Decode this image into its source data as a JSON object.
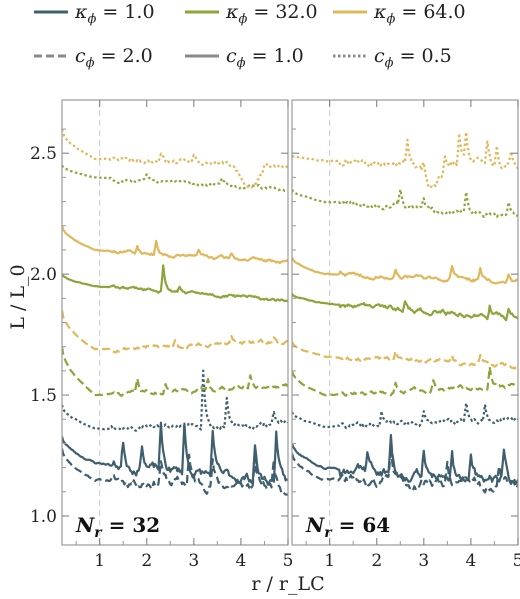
{
  "chart_data": {
    "type": "line",
    "xlabel": "r / r_LC",
    "ylabel": "L / L_0",
    "xlim": [
      0.2,
      5.0
    ],
    "ylim": [
      0.88,
      2.72
    ],
    "x_ticks": [
      1,
      2,
      3,
      4,
      5
    ],
    "y_ticks": [
      1.0,
      1.5,
      2.0,
      2.5
    ],
    "reference_line_x": 1,
    "colors": {
      "k1": "#3f5f6e",
      "k32": "#8ca53a",
      "k64": "#e1b75a"
    },
    "legend": {
      "row1": [
        {
          "sym": "κ",
          "sub": "ϕ",
          "text": " = 1.0",
          "color": "#3f5f6e",
          "style": "solid"
        },
        {
          "sym": "κ",
          "sub": "ϕ",
          "text": " = 32.0",
          "color": "#8ca53a",
          "style": "solid"
        },
        {
          "sym": "κ",
          "sub": "ϕ",
          "text": " = 64.0",
          "color": "#e1b75a",
          "style": "solid"
        }
      ],
      "row2": [
        {
          "sym": "c",
          "sub": "ϕ",
          "text": " = 2.0",
          "color": "#8a8a8a",
          "style": "dashed"
        },
        {
          "sym": "c",
          "sub": "ϕ",
          "text": " = 1.0",
          "color": "#8a8a8a",
          "style": "solid"
        },
        {
          "sym": "c",
          "sub": "ϕ",
          "text": " = 0.5",
          "color": "#8a8a8a",
          "style": "dotted"
        }
      ]
    },
    "panels": [
      {
        "label_sym": "N",
        "label_sub": "r",
        "label_text": " = 32",
        "series": [
          {
            "kappa": 1.0,
            "c": 2.0,
            "color": "#3f5f6e",
            "style": "dashed",
            "start": 1.28,
            "plateau": 1.15,
            "drift": -0.03,
            "noise": 0.03,
            "spikes": [
              [
                2.3,
                0.1
              ],
              [
                2.9,
                0.12
              ],
              [
                3.4,
                0.1
              ],
              [
                4.3,
                0.09
              ],
              [
                4.7,
                0.12
              ]
            ],
            "seed": 11
          },
          {
            "kappa": 1.0,
            "c": 1.0,
            "color": "#3f5f6e",
            "style": "solid",
            "start": 1.33,
            "plateau": 1.22,
            "drift": -0.08,
            "noise": 0.03,
            "spikes": [
              [
                1.5,
                0.1
              ],
              [
                1.9,
                0.11
              ],
              [
                2.3,
                0.17
              ],
              [
                2.8,
                0.2
              ],
              [
                3.4,
                0.17
              ],
              [
                4.3,
                0.15
              ],
              [
                4.75,
                0.22
              ]
            ],
            "seed": 23
          },
          {
            "kappa": 1.0,
            "c": 0.5,
            "color": "#3f5f6e",
            "style": "dotted",
            "start": 1.46,
            "plateau": 1.36,
            "drift": 0.02,
            "noise": 0.015,
            "spikes": [
              [
                3.2,
                0.25
              ],
              [
                3.7,
                0.12
              ],
              [
                4.7,
                0.05
              ]
            ],
            "seed": 31
          },
          {
            "kappa": 32.0,
            "c": 2.0,
            "color": "#8ca53a",
            "style": "dashed",
            "start": 1.7,
            "plateau": 1.5,
            "drift": 0.04,
            "noise": 0.012,
            "spikes": [
              [
                1.8,
                0.05
              ],
              [
                2.4,
                0.04
              ],
              [
                3.3,
                0.04
              ],
              [
                4.2,
                0.05
              ]
            ],
            "seed": 41
          },
          {
            "kappa": 64.0,
            "c": 2.0,
            "color": "#e1b75a",
            "style": "dashed",
            "start": 1.85,
            "plateau": 1.69,
            "drift": 0.03,
            "noise": 0.012,
            "spikes": [
              [
                2.6,
                0.03
              ],
              [
                3.8,
                0.03
              ],
              [
                4.7,
                0.02
              ]
            ],
            "seed": 53
          },
          {
            "kappa": 32.0,
            "c": 1.0,
            "color": "#8ca53a",
            "style": "solid",
            "start": 2.0,
            "plateau": 1.95,
            "drift": -0.06,
            "noise": 0.01,
            "spikes": [
              [
                2.35,
                0.11
              ],
              [
                2.7,
                0.02
              ]
            ],
            "seed": 61
          },
          {
            "kappa": 64.0,
            "c": 1.0,
            "color": "#e1b75a",
            "style": "solid",
            "start": 2.2,
            "plateau": 2.1,
            "drift": -0.05,
            "noise": 0.01,
            "spikes": [
              [
                1.8,
                0.03
              ],
              [
                2.2,
                0.05
              ],
              [
                3.1,
                0.03
              ],
              [
                3.8,
                0.02
              ]
            ],
            "seed": 71
          },
          {
            "kappa": 32.0,
            "c": 0.5,
            "color": "#8ca53a",
            "style": "dotted",
            "start": 2.45,
            "plateau": 2.4,
            "drift": -0.05,
            "noise": 0.01,
            "spikes": [
              [
                2.0,
                0.02
              ],
              [
                3.6,
                0.02
              ]
            ],
            "seed": 83
          },
          {
            "kappa": 64.0,
            "c": 0.5,
            "color": "#e1b75a",
            "style": "dotted",
            "start": 2.6,
            "plateau": 2.48,
            "drift": -0.04,
            "noise": 0.012,
            "spikes": [
              [
                2.3,
                0.03
              ],
              [
                3.0,
                0.03
              ],
              [
                4.5,
                0.03
              ]
            ],
            "seed": 97,
            "dip": [
              4.2,
              0.1
            ]
          }
        ]
      },
      {
        "label_sym": "N",
        "label_sub": "r",
        "label_text": " = 64",
        "series": [
          {
            "kappa": 1.0,
            "c": 2.0,
            "color": "#3f5f6e",
            "style": "dashed",
            "start": 1.26,
            "plateau": 1.15,
            "drift": -0.02,
            "noise": 0.03,
            "spikes": [
              [
                2.3,
                0.12
              ],
              [
                3.5,
                0.1
              ],
              [
                4.6,
                0.08
              ]
            ],
            "seed": 113
          },
          {
            "kappa": 1.0,
            "c": 1.0,
            "color": "#3f5f6e",
            "style": "solid",
            "start": 1.3,
            "plateau": 1.2,
            "drift": -0.06,
            "noise": 0.03,
            "spikes": [
              [
                1.8,
                0.08
              ],
              [
                2.3,
                0.16
              ],
              [
                3.0,
                0.1
              ],
              [
                3.6,
                0.12
              ],
              [
                4.0,
                0.09
              ],
              [
                4.7,
                0.1
              ]
            ],
            "seed": 127
          },
          {
            "kappa": 1.0,
            "c": 0.5,
            "color": "#3f5f6e",
            "style": "dotted",
            "start": 1.43,
            "plateau": 1.37,
            "drift": 0.03,
            "noise": 0.015,
            "spikes": [
              [
                2.1,
                0.06
              ],
              [
                3.0,
                0.05
              ],
              [
                3.9,
                0.07
              ],
              [
                4.3,
                0.06
              ]
            ],
            "seed": 131
          },
          {
            "kappa": 32.0,
            "c": 2.0,
            "color": "#8ca53a",
            "style": "dashed",
            "start": 1.6,
            "plateau": 1.5,
            "drift": 0.04,
            "noise": 0.012,
            "spikes": [
              [
                2.4,
                0.04
              ],
              [
                3.2,
                0.04
              ],
              [
                4.4,
                0.08
              ]
            ],
            "seed": 149
          },
          {
            "kappa": 64.0,
            "c": 2.0,
            "color": "#e1b75a",
            "style": "dashed",
            "start": 1.72,
            "plateau": 1.66,
            "drift": -0.04,
            "noise": 0.012,
            "spikes": [
              [
                2.4,
                0.04
              ],
              [
                3.6,
                0.03
              ],
              [
                4.2,
                0.03
              ]
            ],
            "seed": 157
          },
          {
            "kappa": 32.0,
            "c": 1.0,
            "color": "#8ca53a",
            "style": "solid",
            "start": 1.92,
            "plateau": 1.88,
            "drift": -0.06,
            "noise": 0.015,
            "spikes": [
              [
                2.6,
                0.04
              ],
              [
                4.4,
                0.05
              ],
              [
                4.8,
                0.04
              ]
            ],
            "seed": 163
          },
          {
            "kappa": 64.0,
            "c": 1.0,
            "color": "#e1b75a",
            "style": "solid",
            "start": 2.07,
            "plateau": 2.0,
            "drift": -0.03,
            "noise": 0.012,
            "spikes": [
              [
                2.4,
                0.04
              ],
              [
                3.6,
                0.05
              ],
              [
                4.2,
                0.04
              ],
              [
                4.8,
                0.03
              ]
            ],
            "seed": 173
          },
          {
            "kappa": 32.0,
            "c": 0.5,
            "color": "#8ca53a",
            "style": "dotted",
            "start": 2.35,
            "plateau": 2.3,
            "drift": -0.06,
            "noise": 0.015,
            "spikes": [
              [
                2.5,
                0.06
              ],
              [
                3.0,
                0.04
              ],
              [
                3.9,
                0.07
              ],
              [
                4.8,
                0.05
              ]
            ],
            "seed": 181
          },
          {
            "kappa": 64.0,
            "c": 0.5,
            "color": "#e1b75a",
            "style": "dotted",
            "start": 2.49,
            "plateau": 2.47,
            "drift": -0.02,
            "noise": 0.02,
            "spikes": [
              [
                2.65,
                0.1
              ],
              [
                3.0,
                0.05
              ],
              [
                3.45,
                0.07
              ],
              [
                3.75,
                0.12
              ],
              [
                3.9,
                0.1
              ],
              [
                4.35,
                0.1
              ],
              [
                4.55,
                0.08
              ],
              [
                4.85,
                0.05
              ]
            ],
            "seed": 191,
            "dip": [
              3.2,
              0.1
            ]
          }
        ]
      }
    ]
  }
}
